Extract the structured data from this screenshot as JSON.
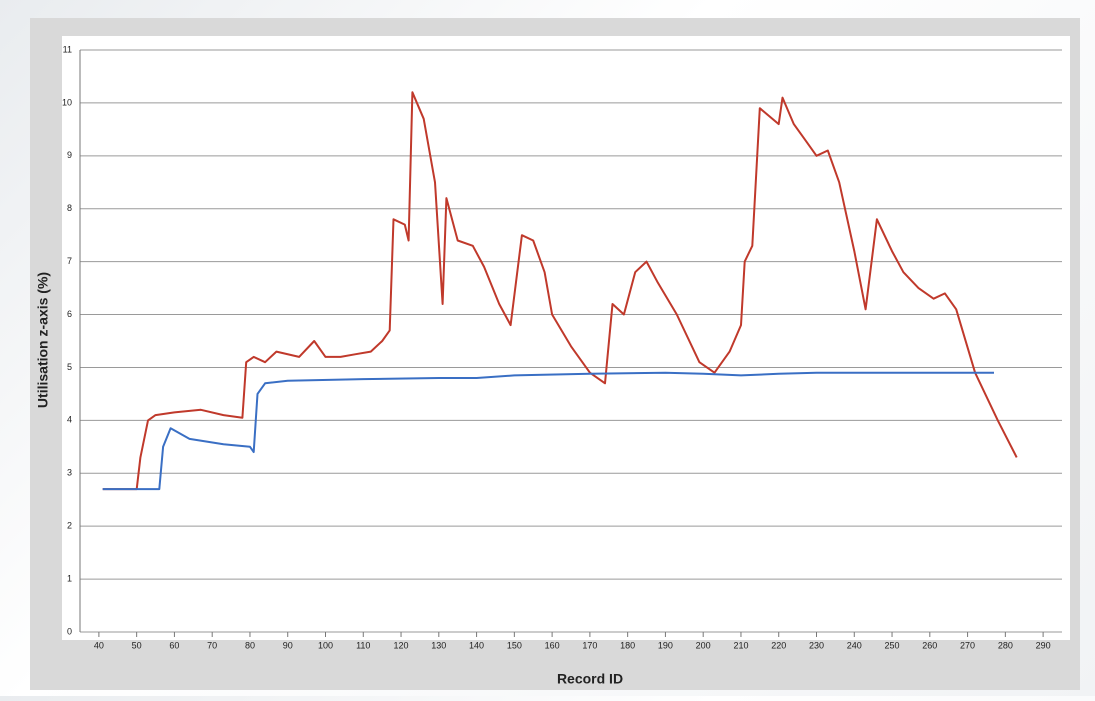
{
  "chart_data": {
    "type": "line",
    "x_label": "Record ID",
    "y_label": "Utilisation z-axis (%)",
    "xlim": [
      35,
      295
    ],
    "xticks": [
      40,
      50,
      60,
      70,
      80,
      90,
      100,
      110,
      120,
      130,
      140,
      150,
      160,
      170,
      180,
      190,
      200,
      210,
      220,
      230,
      240,
      250,
      260,
      270,
      280,
      290
    ],
    "ylim": [
      0,
      11
    ],
    "yticks": [
      0,
      1,
      2,
      3,
      4,
      5,
      6,
      7,
      8,
      9,
      10,
      11
    ],
    "grid": true,
    "series": [
      {
        "color": "#c0392b",
        "x": [
          41,
          50,
          51,
          53,
          55,
          60,
          67,
          73,
          78,
          79,
          81,
          84,
          87,
          93,
          97,
          100,
          104,
          108,
          112,
          115,
          117,
          118,
          121,
          122,
          123,
          126,
          129,
          131,
          132,
          135,
          139,
          142,
          146,
          149,
          152,
          155,
          158,
          160,
          165,
          170,
          174,
          176,
          179,
          182,
          185,
          188,
          193,
          199,
          203,
          207,
          210,
          211,
          213,
          215,
          220,
          221,
          224,
          227,
          230,
          233,
          236,
          240,
          243,
          246,
          250,
          253,
          257,
          261,
          264,
          267,
          272,
          278,
          283
        ],
        "values": [
          2.7,
          2.7,
          3.3,
          4.0,
          4.1,
          4.15,
          4.2,
          4.1,
          4.05,
          5.1,
          5.2,
          5.1,
          5.3,
          5.2,
          5.5,
          5.2,
          5.2,
          5.25,
          5.3,
          5.5,
          5.7,
          7.8,
          7.7,
          7.4,
          10.2,
          9.7,
          8.5,
          6.2,
          8.2,
          7.4,
          7.3,
          6.9,
          6.2,
          5.8,
          7.5,
          7.4,
          6.8,
          6.0,
          5.4,
          4.9,
          4.7,
          6.2,
          6.0,
          6.8,
          7.0,
          6.6,
          6.0,
          5.1,
          4.9,
          5.3,
          5.8,
          7.0,
          7.3,
          9.9,
          9.6,
          10.1,
          9.6,
          9.3,
          9.0,
          9.1,
          8.5,
          7.2,
          6.1,
          7.8,
          7.2,
          6.8,
          6.5,
          6.3,
          6.4,
          6.1,
          4.9,
          4.0,
          3.3
        ]
      },
      {
        "color": "#3a6fc4",
        "x": [
          41,
          56,
          57,
          59,
          64,
          73,
          80,
          81,
          82,
          84,
          90,
          110,
          130,
          140,
          150,
          170,
          190,
          200,
          210,
          220,
          230,
          250,
          270,
          277
        ],
        "values": [
          2.7,
          2.7,
          3.5,
          3.85,
          3.65,
          3.55,
          3.5,
          3.4,
          4.5,
          4.7,
          4.75,
          4.78,
          4.8,
          4.8,
          4.85,
          4.88,
          4.9,
          4.88,
          4.85,
          4.88,
          4.9,
          4.9,
          4.9,
          4.9
        ]
      }
    ]
  }
}
